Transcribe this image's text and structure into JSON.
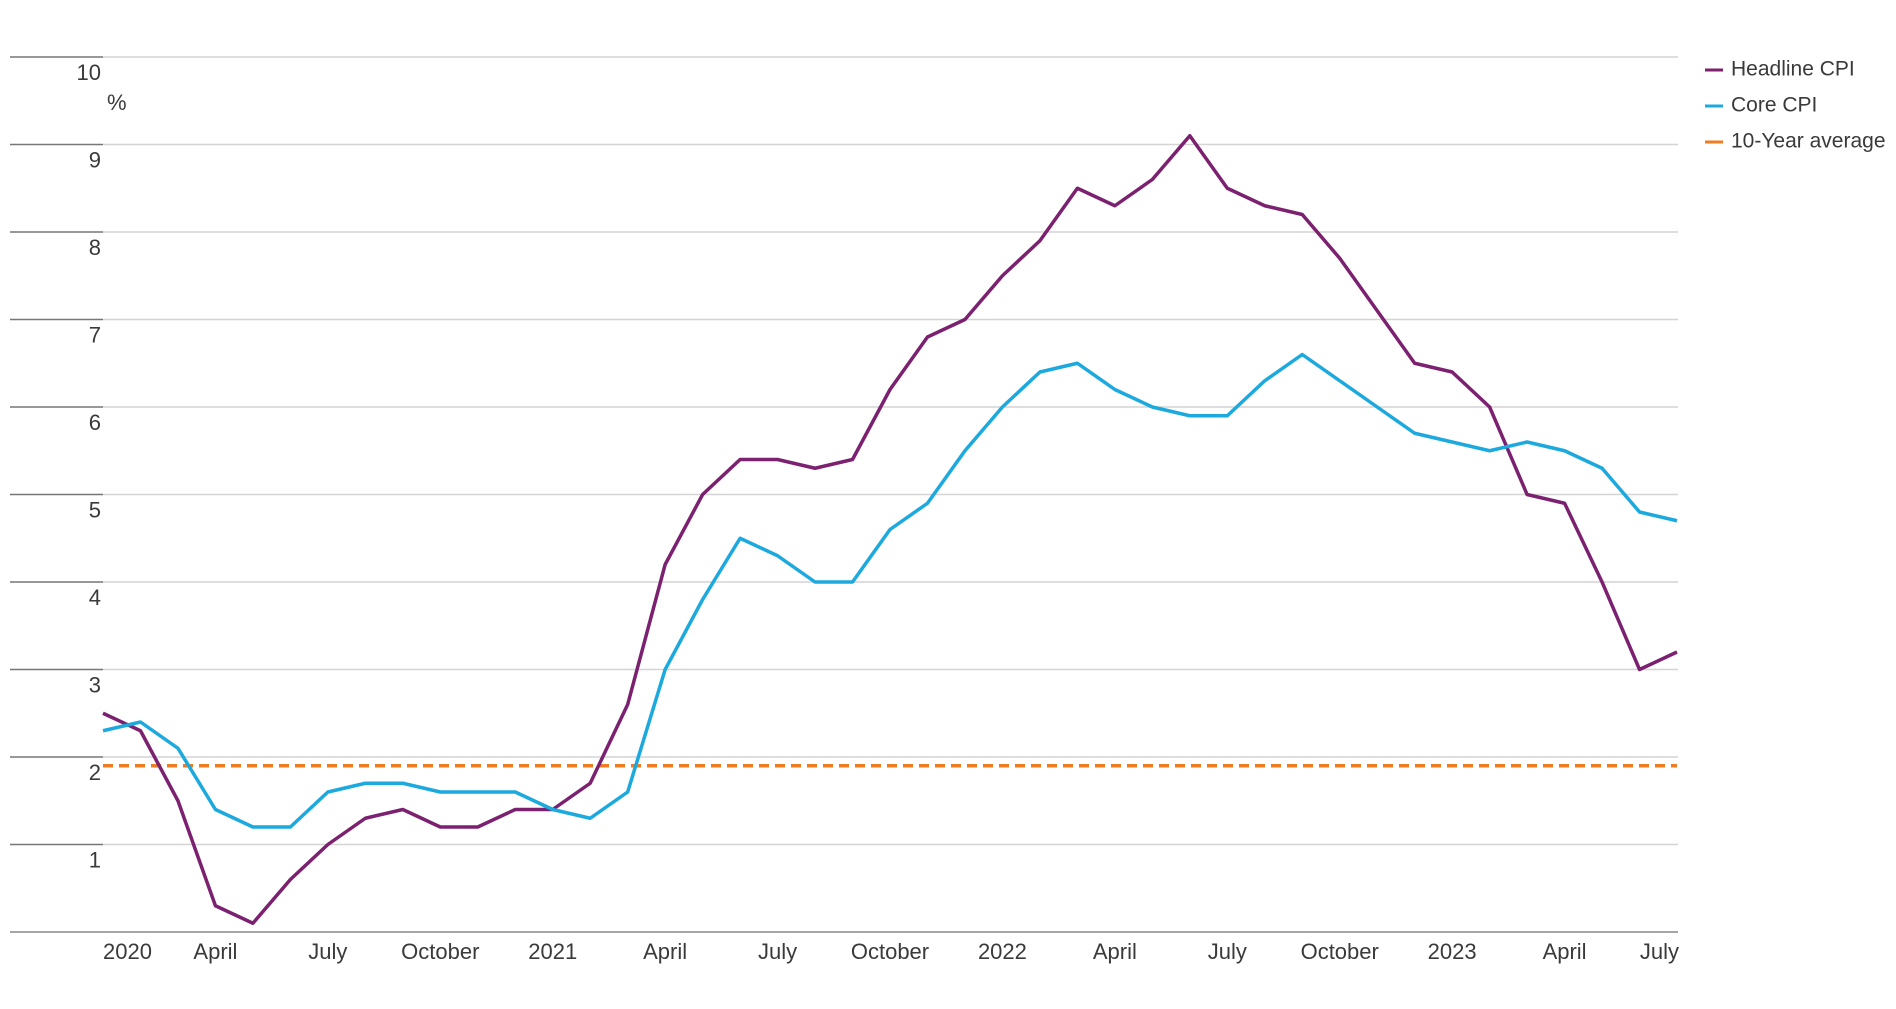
{
  "chart_data": {
    "type": "line",
    "y_unit": "%",
    "categories": [
      "2020",
      null,
      null,
      "April",
      null,
      null,
      "July",
      null,
      null,
      "October",
      null,
      null,
      "2021",
      null,
      null,
      "April",
      null,
      null,
      "July",
      null,
      null,
      "October",
      null,
      null,
      "2022",
      null,
      null,
      "April",
      null,
      null,
      "July",
      null,
      null,
      "October",
      null,
      null,
      "2023",
      null,
      null,
      "April",
      null,
      null,
      "July"
    ],
    "series": [
      {
        "name": "Headline CPI",
        "color": "#7b2170",
        "values": [
          2.5,
          2.3,
          1.5,
          0.3,
          0.1,
          0.6,
          1.0,
          1.3,
          1.4,
          1.2,
          1.2,
          1.4,
          1.4,
          1.7,
          2.6,
          4.2,
          5.0,
          5.4,
          5.4,
          5.3,
          5.4,
          6.2,
          6.8,
          7.0,
          7.5,
          7.9,
          8.5,
          8.3,
          8.6,
          9.1,
          8.5,
          8.3,
          8.2,
          7.7,
          7.1,
          6.5,
          6.4,
          6.0,
          5.0,
          4.9,
          4.0,
          3.0,
          3.2
        ]
      },
      {
        "name": "Core CPI",
        "color": "#1ba9de",
        "values": [
          2.3,
          2.4,
          2.1,
          1.4,
          1.2,
          1.2,
          1.6,
          1.7,
          1.7,
          1.6,
          1.6,
          1.6,
          1.4,
          1.3,
          1.6,
          3.0,
          3.8,
          4.5,
          4.3,
          4.0,
          4.0,
          4.6,
          4.9,
          5.5,
          6.0,
          6.4,
          6.5,
          6.2,
          6.0,
          5.9,
          5.9,
          6.3,
          6.6,
          6.3,
          6.0,
          5.7,
          5.6,
          5.5,
          5.6,
          5.5,
          5.3,
          4.8,
          4.7
        ]
      }
    ],
    "reference_line": {
      "name": "10-Year average",
      "color": "#f07c22",
      "value": 1.9,
      "dashed": true
    },
    "ylim": [
      0,
      10
    ],
    "yticks": [
      1,
      2,
      3,
      4,
      5,
      6,
      7,
      8,
      9,
      10
    ],
    "grid": true,
    "legend": "right"
  }
}
